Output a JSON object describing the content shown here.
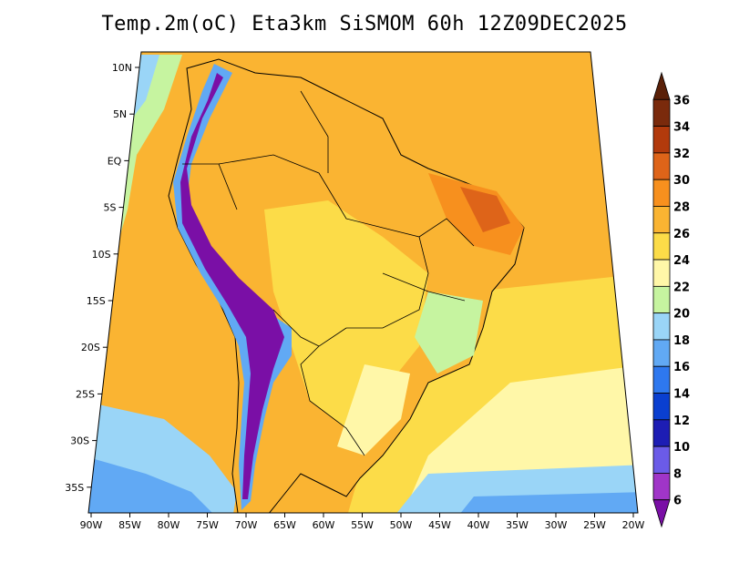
{
  "title": "Temp.2m(oC) Eta3km SiSMOM 60h 12Z09DEC2025",
  "lat_labels": [
    "10N",
    "5N",
    "EQ",
    "5S",
    "10S",
    "15S",
    "20S",
    "25S",
    "30S",
    "35S"
  ],
  "lon_labels": [
    "90W",
    "85W",
    "80W",
    "75W",
    "70W",
    "65W",
    "60W",
    "55W",
    "50W",
    "45W",
    "40W",
    "35W",
    "30W",
    "25W",
    "20W"
  ],
  "colorbar": {
    "labels": [
      "6",
      "8",
      "10",
      "12",
      "14",
      "16",
      "18",
      "20",
      "22",
      "24",
      "26",
      "28",
      "30",
      "32",
      "34",
      "36"
    ],
    "colors": [
      "#7a0fa6",
      "#a035c8",
      "#6b5be8",
      "#1d1db4",
      "#0a3fd0",
      "#2e78ef",
      "#61a9f4",
      "#9ad5f7",
      "#c6f4a0",
      "#fff7a8",
      "#fcdc48",
      "#fab432",
      "#f7901e",
      "#de6419",
      "#b23a0c",
      "#7a2a0c",
      "#5a2008"
    ]
  },
  "colors": {
    "ocean_warm": "#fab432",
    "ocean_mid": "#fcdc48",
    "ocean_cool": "#fff7a8",
    "ocean_south": "#61a9f4",
    "land": "#fab432",
    "andes": "#7a0fa6",
    "border": "#000000"
  }
}
